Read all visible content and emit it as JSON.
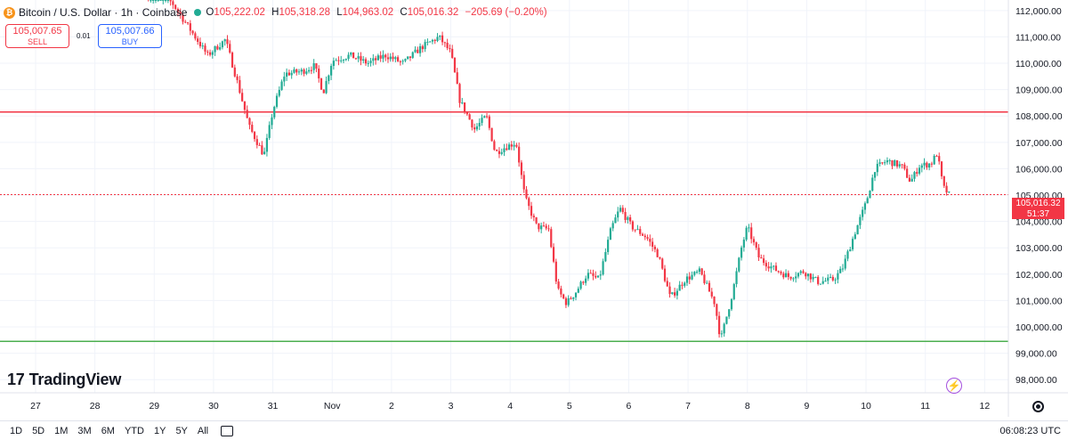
{
  "header": {
    "icon_letter": "₿",
    "symbol_title": "Bitcoin / U.S. Dollar · 1h · Coinbase",
    "open_key": "O",
    "open": "105,222.02",
    "high_key": "H",
    "high": "105,318.28",
    "low_key": "L",
    "low": "104,963.02",
    "close_key": "C",
    "close": "105,016.32",
    "change": "−205.69 (−0.20%)"
  },
  "trade": {
    "sell_price": "105,007.65",
    "sell_label": "SELL",
    "spread": "0.01",
    "buy_price": "105,007.66",
    "buy_label": "BUY"
  },
  "logo": {
    "mark": "17",
    "text": "TradingView"
  },
  "price_label": {
    "price": "105,016.32",
    "countdown": "51:37"
  },
  "footer": {
    "timeframes": [
      "1D",
      "5D",
      "1M",
      "3M",
      "6M",
      "YTD",
      "1Y",
      "5Y",
      "All"
    ],
    "time": "06:08:23 UTC"
  },
  "icons": {
    "settings": "gear-icon",
    "calendar": "calendar-icon",
    "alert": "lightning-icon",
    "coin": "bitcoin-icon"
  },
  "colors": {
    "up": "#22ab94",
    "down": "#f23645",
    "resistance_line": "#f23645",
    "support_line": "#4caf50",
    "grid": "#f0f3fa"
  },
  "chart_data": {
    "type": "candlestick",
    "title": "Bitcoin / U.S. Dollar · 1h · Coinbase",
    "xlabel": "",
    "ylabel": "",
    "ylim": [
      97500,
      112400
    ],
    "y_ticks": [
      "112,000.00",
      "111,000.00",
      "110,000.00",
      "109,000.00",
      "108,000.00",
      "107,000.00",
      "106,000.00",
      "105,000.00",
      "104,000.00",
      "103,000.00",
      "102,000.00",
      "101,000.00",
      "100,000.00",
      "99,000.00",
      "98,000.00"
    ],
    "x_ticks": [
      {
        "label": "27",
        "day": 27
      },
      {
        "label": "28",
        "day": 28
      },
      {
        "label": "29",
        "day": 29
      },
      {
        "label": "30",
        "day": 30
      },
      {
        "label": "31",
        "day": 31
      },
      {
        "label": "Nov",
        "day": 32
      },
      {
        "label": "2",
        "day": 33
      },
      {
        "label": "3",
        "day": 34
      },
      {
        "label": "4",
        "day": 35
      },
      {
        "label": "5",
        "day": 36
      },
      {
        "label": "6",
        "day": 37
      },
      {
        "label": "7",
        "day": 38
      },
      {
        "label": "8",
        "day": 39
      },
      {
        "label": "9",
        "day": 40
      },
      {
        "label": "10",
        "day": 41
      },
      {
        "label": "11",
        "day": 42
      },
      {
        "label": "12",
        "day": 43
      }
    ],
    "horizontal_lines": [
      {
        "price": 108150,
        "color": "#f23645"
      },
      {
        "price": 99450,
        "color": "#4caf50"
      }
    ],
    "current_price": 105016.32,
    "price_path": [
      [
        28.9,
        112800
      ],
      [
        29.3,
        112300
      ],
      [
        29.6,
        111300
      ],
      [
        29.9,
        110300
      ],
      [
        30.2,
        110900
      ],
      [
        30.4,
        109300
      ],
      [
        30.6,
        107600
      ],
      [
        30.85,
        106500
      ],
      [
        31.0,
        108200
      ],
      [
        31.2,
        109600
      ],
      [
        31.5,
        109700
      ],
      [
        31.7,
        109900
      ],
      [
        31.85,
        108900
      ],
      [
        32.0,
        110100
      ],
      [
        32.3,
        110300
      ],
      [
        32.6,
        110000
      ],
      [
        32.9,
        110300
      ],
      [
        33.2,
        110000
      ],
      [
        33.5,
        110600
      ],
      [
        33.8,
        111000
      ],
      [
        34.0,
        110400
      ],
      [
        34.15,
        108600
      ],
      [
        34.4,
        107500
      ],
      [
        34.6,
        108000
      ],
      [
        34.75,
        106600
      ],
      [
        34.9,
        106800
      ],
      [
        35.1,
        107000
      ],
      [
        35.25,
        104900
      ],
      [
        35.45,
        103800
      ],
      [
        35.65,
        103700
      ],
      [
        35.8,
        101400
      ],
      [
        35.95,
        100900
      ],
      [
        36.1,
        101300
      ],
      [
        36.3,
        102000
      ],
      [
        36.5,
        101800
      ],
      [
        36.7,
        103700
      ],
      [
        36.85,
        104500
      ],
      [
        37.05,
        103800
      ],
      [
        37.3,
        103400
      ],
      [
        37.5,
        102700
      ],
      [
        37.7,
        101100
      ],
      [
        37.95,
        101800
      ],
      [
        38.2,
        102100
      ],
      [
        38.45,
        100900
      ],
      [
        38.55,
        99500
      ],
      [
        38.75,
        101300
      ],
      [
        38.9,
        103000
      ],
      [
        39.0,
        103800
      ],
      [
        39.2,
        102600
      ],
      [
        39.45,
        102200
      ],
      [
        39.7,
        101900
      ],
      [
        39.95,
        102100
      ],
      [
        40.2,
        101700
      ],
      [
        40.45,
        101800
      ],
      [
        40.6,
        102200
      ],
      [
        40.8,
        103500
      ],
      [
        41.0,
        104700
      ],
      [
        41.15,
        106000
      ],
      [
        41.35,
        106300
      ],
      [
        41.6,
        106100
      ],
      [
        41.75,
        105500
      ],
      [
        41.9,
        106100
      ],
      [
        42.1,
        106200
      ],
      [
        42.2,
        106600
      ],
      [
        42.3,
        105300
      ],
      [
        42.4,
        105016
      ]
    ],
    "x_range": [
      26.4,
      43.4
    ]
  }
}
